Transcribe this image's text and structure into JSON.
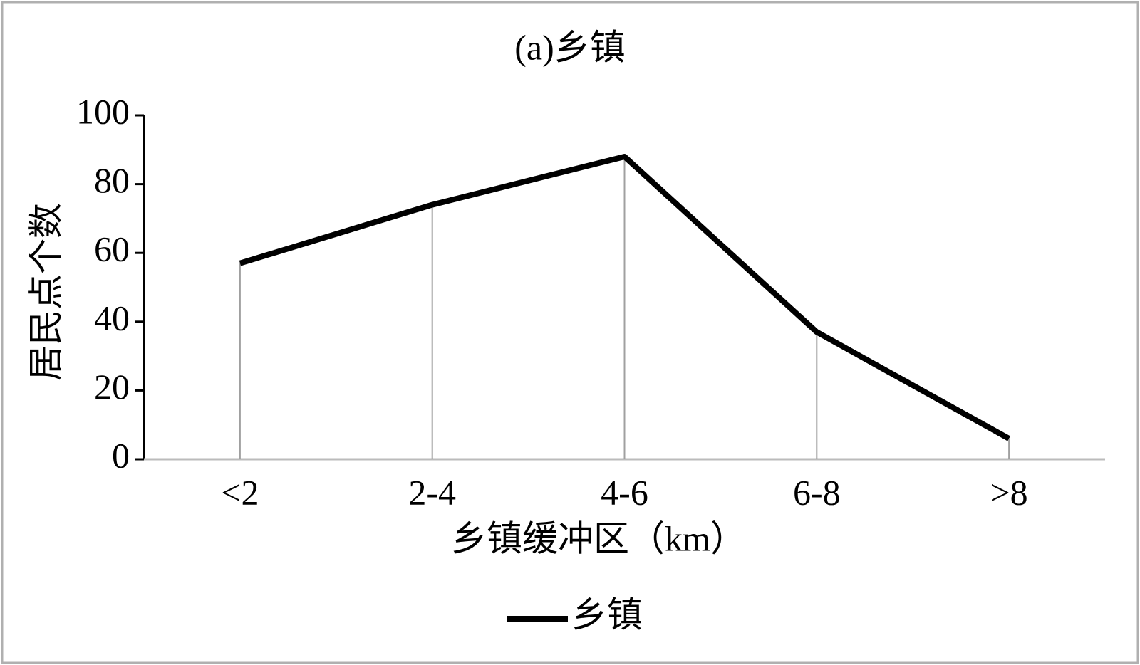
{
  "chart_data": {
    "type": "line",
    "title": "(a)乡镇",
    "x_label": "乡镇缓冲区（km）",
    "y_label": "居民点个数",
    "categories": [
      "<2",
      "2-4",
      "4-6",
      "6-8",
      ">8"
    ],
    "series": [
      {
        "name": "乡镇",
        "color": "#000000",
        "values": [
          57,
          74,
          88,
          37,
          6
        ]
      }
    ],
    "ylim": [
      0,
      100
    ],
    "yticks": [
      0,
      20,
      40,
      60,
      80,
      100
    ],
    "drop_lines": true,
    "legend": "bottom"
  }
}
